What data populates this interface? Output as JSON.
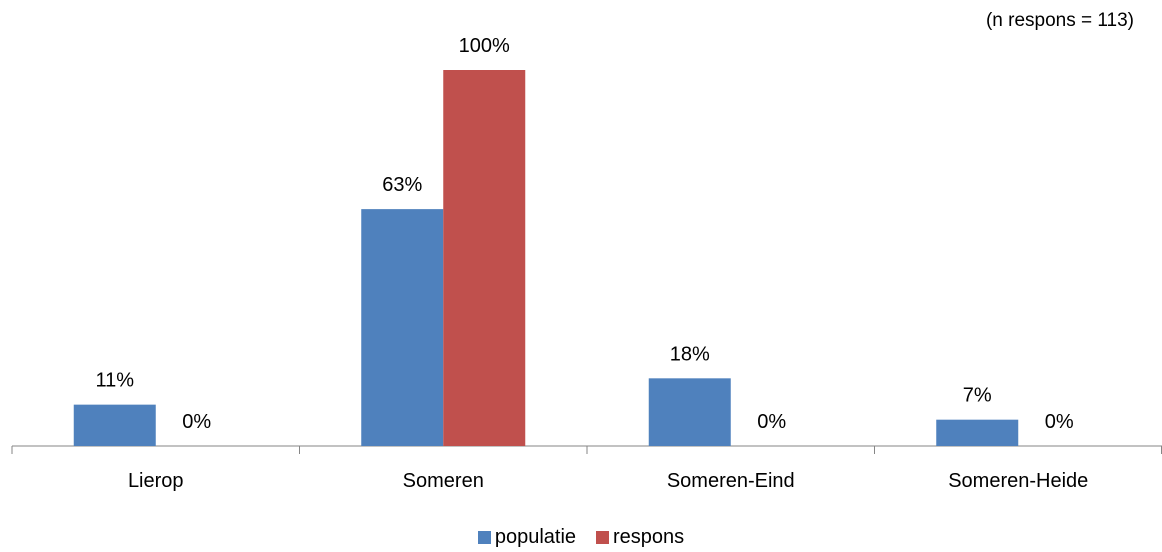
{
  "note": "(n respons = 113)",
  "colors": {
    "populatie": "#4F81BD",
    "respons": "#C0504D",
    "axis": "#868686"
  },
  "legend": [
    {
      "name": "populatie",
      "color": "#4F81BD"
    },
    {
      "name": "respons",
      "color": "#C0504D"
    }
  ],
  "chart_data": {
    "type": "bar",
    "categories": [
      "Lierop",
      "Someren",
      "Someren-Eind",
      "Someren-Heide"
    ],
    "series": [
      {
        "name": "populatie",
        "values": [
          11,
          63,
          18,
          7
        ],
        "labels": [
          "11%",
          "63%",
          "18%",
          "7%"
        ]
      },
      {
        "name": "respons",
        "values": [
          0,
          100,
          0,
          0
        ],
        "labels": [
          "0%",
          "100%",
          "0%",
          "0%"
        ]
      }
    ],
    "ylim": [
      0,
      110
    ],
    "unit": "%",
    "grid": false,
    "legend_position": "bottom"
  }
}
